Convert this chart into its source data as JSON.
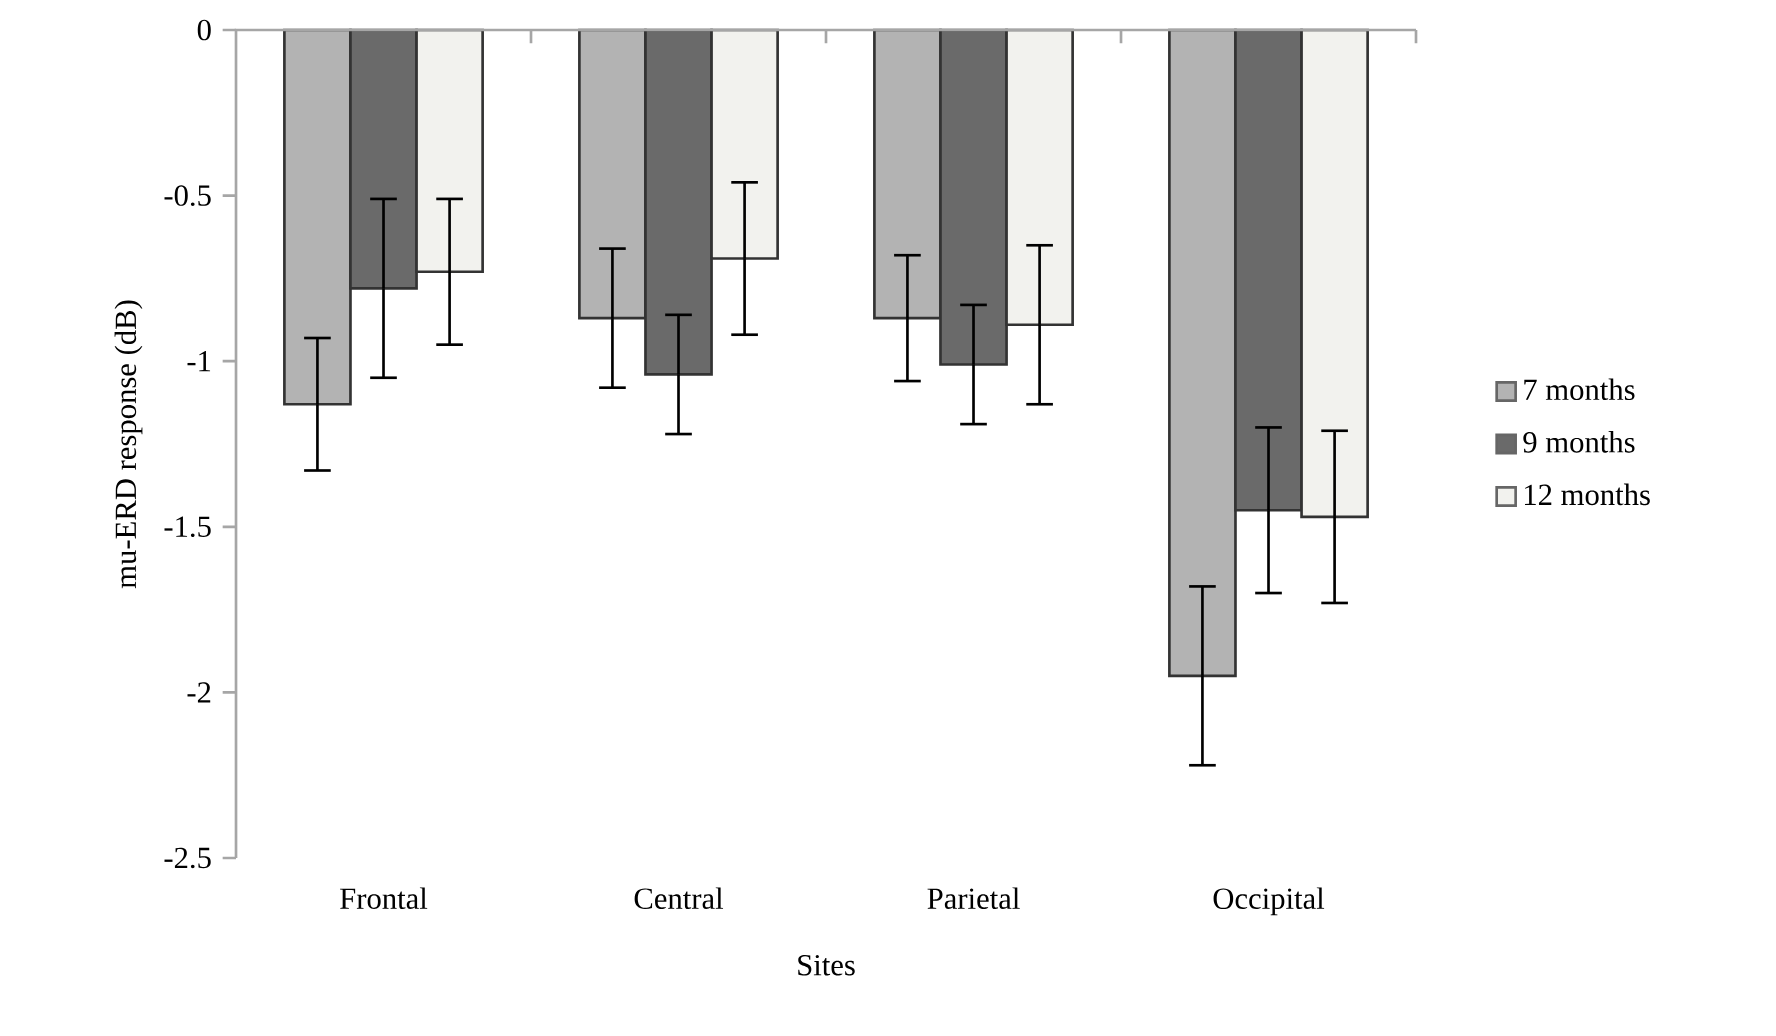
{
  "chart_data": {
    "type": "bar",
    "xlabel": "Sites",
    "ylabel": "mu-ERD response (dB)",
    "categories": [
      "Frontal",
      "Central",
      "Parietal",
      "Occipital"
    ],
    "series": [
      {
        "name": "7 months",
        "color": "#b3b3b3",
        "values": [
          -1.13,
          -0.87,
          -0.87,
          -1.95
        ],
        "errors": [
          0.2,
          0.21,
          0.19,
          0.27
        ]
      },
      {
        "name": "9 months",
        "color": "#6a6a6a",
        "values": [
          -0.78,
          -1.04,
          -1.01,
          -1.45
        ],
        "errors": [
          0.27,
          0.18,
          0.18,
          0.25
        ]
      },
      {
        "name": "12 months",
        "color": "#f2f2ee",
        "values": [
          -0.73,
          -0.69,
          -0.89,
          -1.47
        ],
        "errors": [
          0.22,
          0.23,
          0.24,
          0.26
        ]
      }
    ],
    "ylim": [
      -2.5,
      0
    ],
    "yticks": [
      -2.5,
      -2,
      -1.5,
      -1,
      -0.5,
      0
    ],
    "grid": false,
    "legend": "right"
  }
}
